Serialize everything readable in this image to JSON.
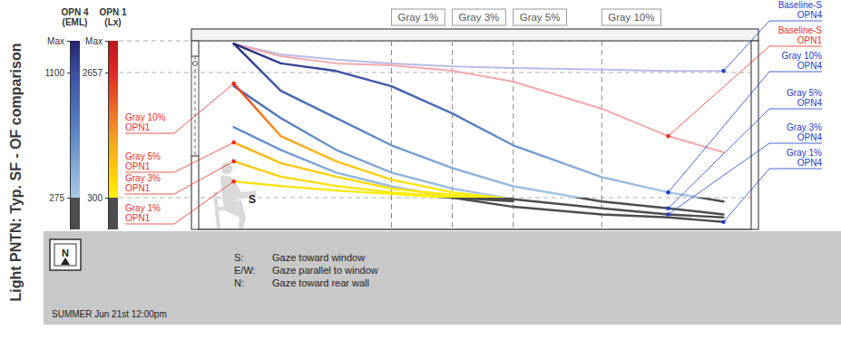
{
  "chart_data": {
    "type": "line",
    "title": "Light PNTN: Typ. SF - OF comparison",
    "subtitle": "SUMMER Jun 21st 12:00pm",
    "x": [
      6.5,
      15,
      25,
      35,
      46,
      57,
      73,
      85,
      95
    ],
    "xlim": [
      0,
      100
    ],
    "ylabel": "OPN 4\n(EML)",
    "ylim": [
      66,
      1309
    ],
    "yticks": [
      275,
      1100,
      {
        "value": 1309,
        "label": "Max"
      }
    ],
    "y_colors": [
      {
        "value": 66,
        "color": "#4d4d4d"
      },
      {
        "value": 275,
        "color": "#4d4d4d"
      },
      {
        "value": 275,
        "color": "#a9c9e6"
      },
      {
        "value": 700,
        "color": "#5b86c5"
      },
      {
        "value": 1100,
        "color": "#3a4fa3"
      },
      {
        "value": 1309,
        "color": "#24246e"
      }
    ],
    "y2label": "OPN 1\n(Lx)",
    "y2lim": [
      -298,
      3255
    ],
    "y2ticks": [
      300,
      2657,
      {
        "value": 3255,
        "label": "Max"
      }
    ],
    "y2_colors": [
      {
        "value": -298,
        "color": "#4d4d4d"
      },
      {
        "value": 300,
        "color": "#4d4d4d"
      },
      {
        "value": 300,
        "color": "#fff200"
      },
      {
        "value": 1400,
        "color": "#f9a11b"
      },
      {
        "value": 2657,
        "color": "#e3262b"
      },
      {
        "value": 3255,
        "color": "#c1121f"
      }
    ],
    "grid": true,
    "markers": [
      {
        "x": 35,
        "label": "Gray 1%"
      },
      {
        "x": 46,
        "label": "Gray 3%"
      },
      {
        "x": 57,
        "label": "Gray 5%"
      },
      {
        "x": 73,
        "label": "Gray 10%"
      }
    ],
    "viewer": "S",
    "compass": "N",
    "annotations": [
      {
        "key": "S:",
        "text": "Gaze toward window"
      },
      {
        "key": "E/W:",
        "text": "Gaze parallel to window"
      },
      {
        "key": "N:",
        "text": "Gaze toward rear wall"
      }
    ],
    "series": [
      {
        "name": "Baseline-S\nOPN4",
        "color": "#b9bde9",
        "values": [
          1290,
          1220,
          1185,
          1160,
          1140,
          1130,
          1120,
          1110,
          1110
        ]
      },
      {
        "name": "Baseline-S\nOPN1",
        "axis": "y2",
        "color": "#f5a8ad",
        "values": [
          3200,
          2965,
          2830,
          2795,
          2690,
          2485,
          1975,
          1460,
          1155
        ]
      },
      {
        "name": "Gray 10%\nOPN4",
        "values": [
          1290,
          1160,
          1110,
          1010,
          830,
          620,
          410,
          310,
          250
        ]
      },
      {
        "name": "Gray 5%\nOPN4",
        "values": [
          1290,
          980,
          800,
          620,
          470,
          350,
          250,
          205,
          165
        ]
      },
      {
        "name": "Gray 3%\nOPN4",
        "values": [
          1010,
          800,
          590,
          440,
          335,
          265,
          205,
          165,
          145
        ]
      },
      {
        "name": "Gray 1%\nOPN4",
        "values": [
          740,
          590,
          440,
          350,
          275,
          215,
          165,
          145,
          115
        ]
      },
      {
        "name": "Gray 10%\nOPN1",
        "axis": "y2",
        "values": [
          2450,
          1460,
          985,
          640,
          400,
          265,
          null,
          null,
          null
        ]
      },
      {
        "name": "Gray 5%\nOPN1",
        "axis": "y2",
        "values": [
          1340,
          950,
          695,
          470,
          350,
          265,
          null,
          null,
          null
        ]
      },
      {
        "name": "Gray 3%\nOPN1",
        "axis": "y2",
        "values": [
          985,
          695,
          520,
          400,
          315,
          250,
          null,
          null,
          null
        ]
      },
      {
        "name": "Gray 1%\nOPN1",
        "axis": "y2",
        "values": [
          605,
          520,
          435,
          370,
          300,
          230,
          null,
          null,
          null
        ]
      }
    ]
  }
}
